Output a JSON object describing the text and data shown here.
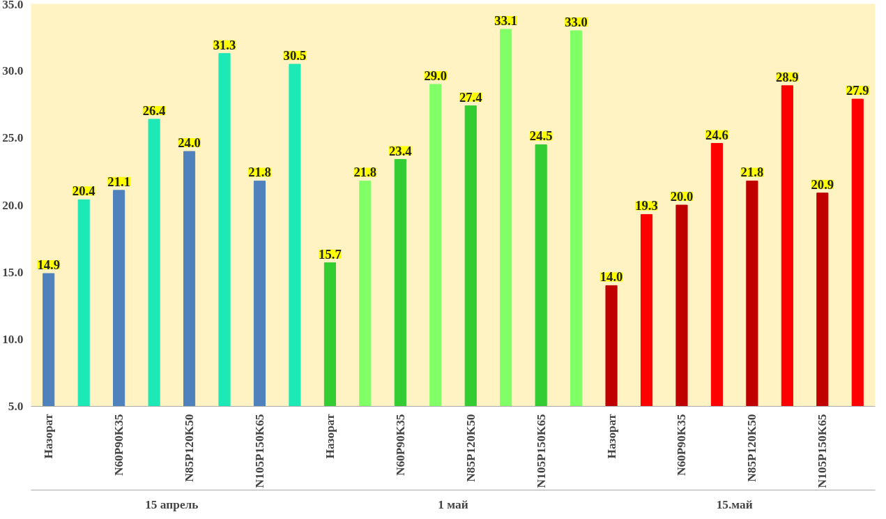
{
  "chart_data": {
    "type": "bar",
    "categories": [
      "Назорат",
      null,
      "N60P90K35",
      null,
      "N85P120K50",
      null,
      "N105P150K65",
      null,
      "Назорат",
      null,
      "N60P90K35",
      null,
      "N85P120K50",
      null,
      "N105P150K65",
      null,
      "Назорат",
      null,
      "N60P90K35",
      null,
      "N85P120K50",
      null,
      "N105P150K65",
      null
    ],
    "values": [
      14.9,
      20.4,
      21.1,
      26.4,
      24.0,
      31.3,
      21.8,
      30.5,
      15.7,
      21.8,
      23.4,
      29.0,
      27.4,
      33.1,
      24.5,
      33.0,
      14.0,
      19.3,
      20.0,
      24.6,
      21.8,
      28.9,
      20.9,
      27.9
    ],
    "colors": [
      "#4f81bd",
      "#1de9b6",
      "#4f81bd",
      "#1de9b6",
      "#4f81bd",
      "#1de9b6",
      "#4f81bd",
      "#1de9b6",
      "#33cc33",
      "#80ff66",
      "#33cc33",
      "#80ff66",
      "#33cc33",
      "#80ff66",
      "#33cc33",
      "#80ff66",
      "#c00000",
      "#ff0000",
      "#c00000",
      "#ff0000",
      "#c00000",
      "#ff0000",
      "#c00000",
      "#ff0000"
    ],
    "annotations": [
      "15 апрель",
      "1 май",
      "15.май"
    ],
    "ylim": [
      5,
      35
    ],
    "yticks": [
      {
        "value": 5,
        "label": "5.0"
      },
      {
        "value": 10,
        "label": "10.0"
      },
      {
        "value": 15,
        "label": "15.0"
      },
      {
        "value": 20,
        "label": "20.0"
      },
      {
        "value": 25,
        "label": "25.0"
      },
      {
        "value": 30,
        "label": "30.0"
      },
      {
        "value": 35,
        "label": "35.0"
      }
    ],
    "value_labels": [
      "14.9",
      "20.4",
      "21.1",
      "26.4",
      "24.0",
      "31.3",
      "21.8",
      "30.5",
      "15.7",
      "21.8",
      "23.4",
      "29.0",
      "27.4",
      "33.1",
      "24.5",
      "33.0",
      "14.0",
      "19.3",
      "20.0",
      "24.6",
      "21.8",
      "28.9",
      "20.9",
      "27.9"
    ],
    "grid": false
  }
}
